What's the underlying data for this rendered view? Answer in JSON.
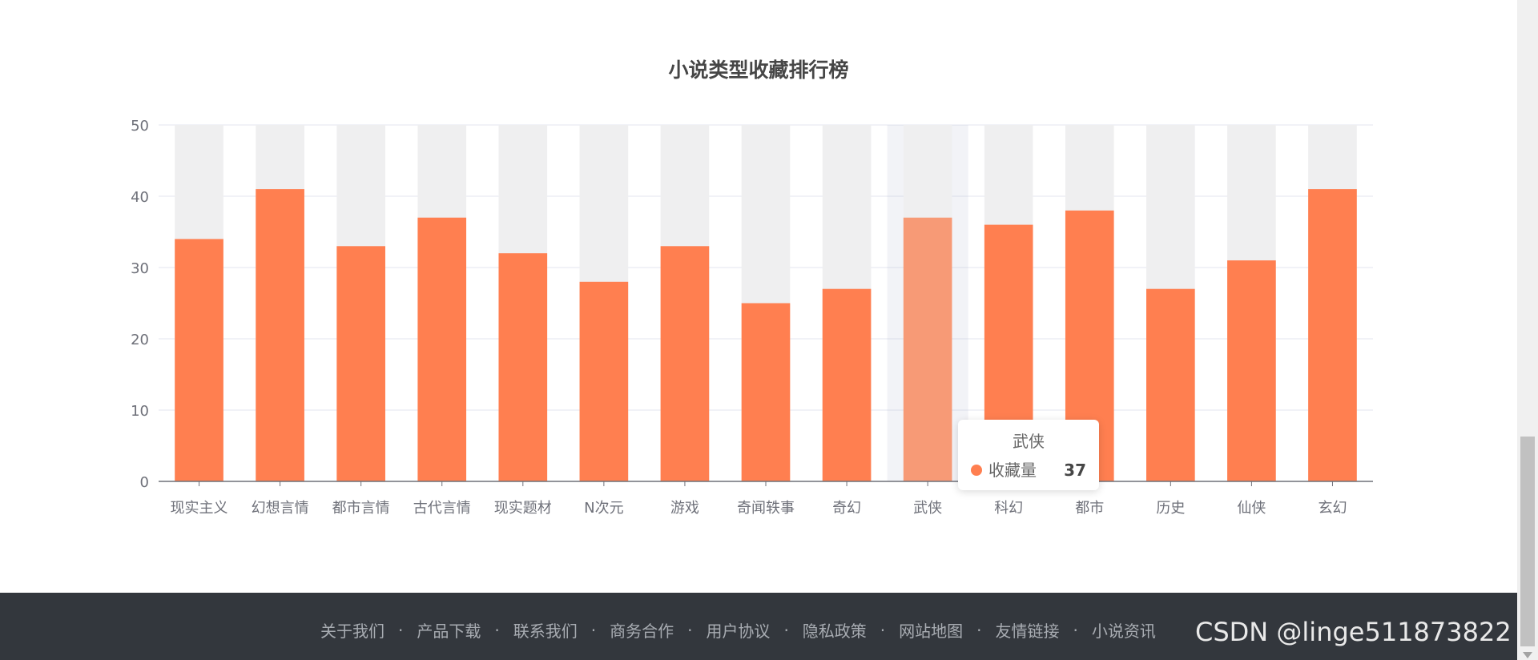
{
  "chart_data": {
    "type": "bar",
    "title": "小说类型收藏排行榜",
    "categories": [
      "现实主义",
      "幻想言情",
      "都市言情",
      "古代言情",
      "现实题材",
      "N次元",
      "游戏",
      "奇闻轶事",
      "奇幻",
      "武侠",
      "科幻",
      "都市",
      "历史",
      "仙侠",
      "玄幻"
    ],
    "series": [
      {
        "name": "收藏量",
        "values": [
          34,
          41,
          33,
          37,
          32,
          28,
          33,
          25,
          27,
          37,
          36,
          38,
          27,
          31,
          41
        ]
      }
    ],
    "yticks": [
      "0",
      "10",
      "20",
      "30",
      "40",
      "50"
    ],
    "ylim": [
      0,
      50
    ],
    "grid": true,
    "background_bars": true,
    "highlighted_index": 9,
    "bar_color": "#ff7f50",
    "highlight_color": "#f79a76",
    "background_bar_color": "#efeff0",
    "tooltip": {
      "title": "武侠",
      "series_name": "收藏量",
      "value": "37"
    }
  },
  "footer": {
    "links": [
      "关于我们",
      "产品下载",
      "联系我们",
      "商务合作",
      "用户协议",
      "隐私政策",
      "网站地图",
      "友情链接",
      "小说资讯"
    ],
    "separator": "·",
    "background_color": "#33373d"
  },
  "watermark": "CSDN @linge511873822"
}
